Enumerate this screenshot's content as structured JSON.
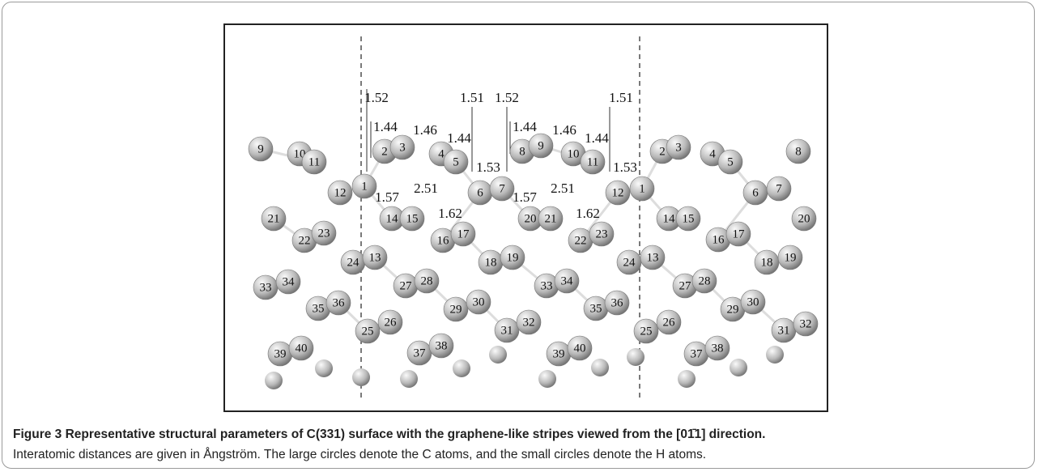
{
  "figure": {
    "atoms": [
      "9",
      "10",
      "11",
      "12",
      "1",
      "21",
      "22",
      "23",
      "24",
      "13",
      "33",
      "34",
      "35",
      "36",
      "25",
      "26",
      "39",
      "40",
      "2",
      "3",
      "4",
      "5",
      "6",
      "7",
      "14",
      "15",
      "16",
      "17",
      "18",
      "19",
      "27",
      "28",
      "29",
      "30",
      "31",
      "32",
      "37",
      "38",
      "8",
      "9",
      "10",
      "11",
      "12",
      "1",
      "20",
      "21",
      "22",
      "23",
      "33",
      "34",
      "35",
      "36",
      "39",
      "40",
      "2",
      "3",
      "4",
      "5",
      "6",
      "7",
      "8",
      "14",
      "15",
      "16",
      "17",
      "20",
      "18",
      "19",
      "24",
      "13",
      "27",
      "28",
      "29",
      "30",
      "31",
      "32",
      "25",
      "26",
      "37",
      "38"
    ],
    "distances": [
      "1.52",
      "1.44",
      "1.46",
      "1.44",
      "1.51",
      "1.52",
      "1.44",
      "1.53",
      "1.46",
      "1.44",
      "1.51",
      "1.53",
      "1.57",
      "2.51",
      "1.57",
      "2.51",
      "1.62",
      "1.62"
    ],
    "caption": {
      "label": "Figure 3",
      "title": "Representative structural parameters of C(331) surface with the graphene-like stripes viewed from the [01̄1] direction.",
      "text": "Interatomic distances are given in Ångström. The large circles denote the C atoms, and the small circles denote the H atoms."
    }
  }
}
